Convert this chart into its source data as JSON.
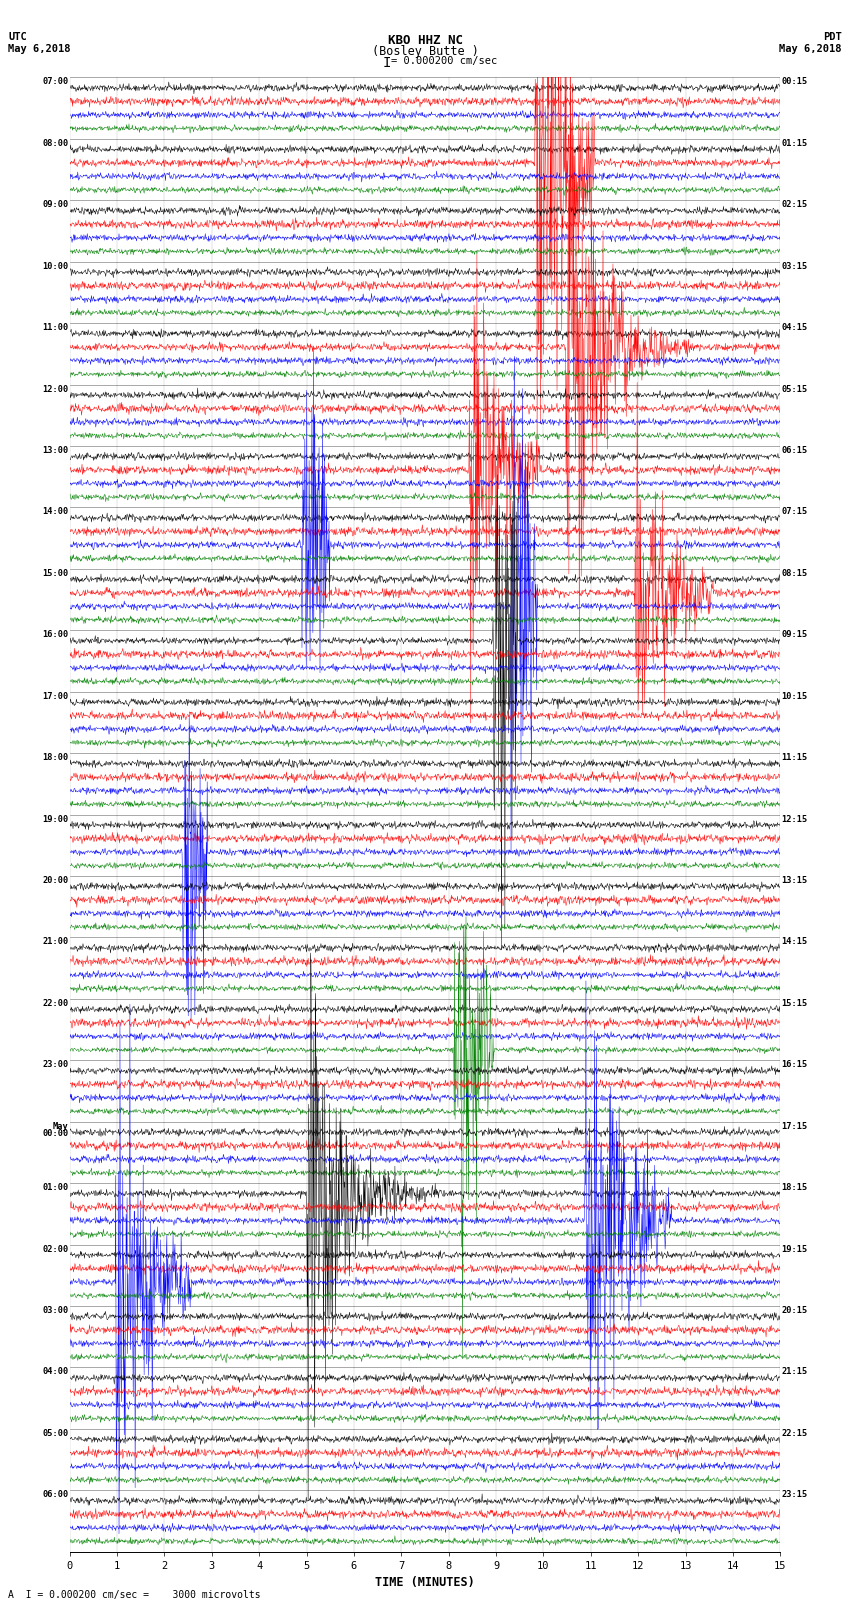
{
  "title_line1": "KBO HHZ NC",
  "title_line2": "(Bosley Butte )",
  "scale_text": "= 0.000200 cm/sec",
  "left_label_top": "UTC",
  "left_label_date": "May 6,2018",
  "right_label_top": "PDT",
  "right_label_date": "May 6,2018",
  "xlabel": "TIME (MINUTES)",
  "bottom_note": "A  I = 0.000200 cm/sec =    3000 microvolts",
  "utc_hour_labels": [
    "07:00",
    "08:00",
    "09:00",
    "10:00",
    "11:00",
    "12:00",
    "13:00",
    "14:00",
    "15:00",
    "16:00",
    "17:00",
    "18:00",
    "19:00",
    "20:00",
    "21:00",
    "22:00",
    "23:00",
    "May\n00:00",
    "01:00",
    "02:00",
    "03:00",
    "04:00",
    "05:00",
    "06:00"
  ],
  "pdt_hour_labels": [
    "00:15",
    "01:15",
    "02:15",
    "03:15",
    "04:15",
    "05:15",
    "06:15",
    "07:15",
    "08:15",
    "09:15",
    "10:15",
    "11:15",
    "12:15",
    "13:15",
    "14:15",
    "15:15",
    "16:15",
    "17:15",
    "18:15",
    "19:15",
    "20:15",
    "21:15",
    "22:15",
    "23:15"
  ],
  "n_hours": 24,
  "n_traces_per_hour": 4,
  "trace_colors": [
    "black",
    "red",
    "blue",
    "green"
  ],
  "time_minutes": 15,
  "background_color": "white",
  "figure_width": 8.5,
  "figure_height": 16.13,
  "dpi": 100,
  "seed": 42
}
